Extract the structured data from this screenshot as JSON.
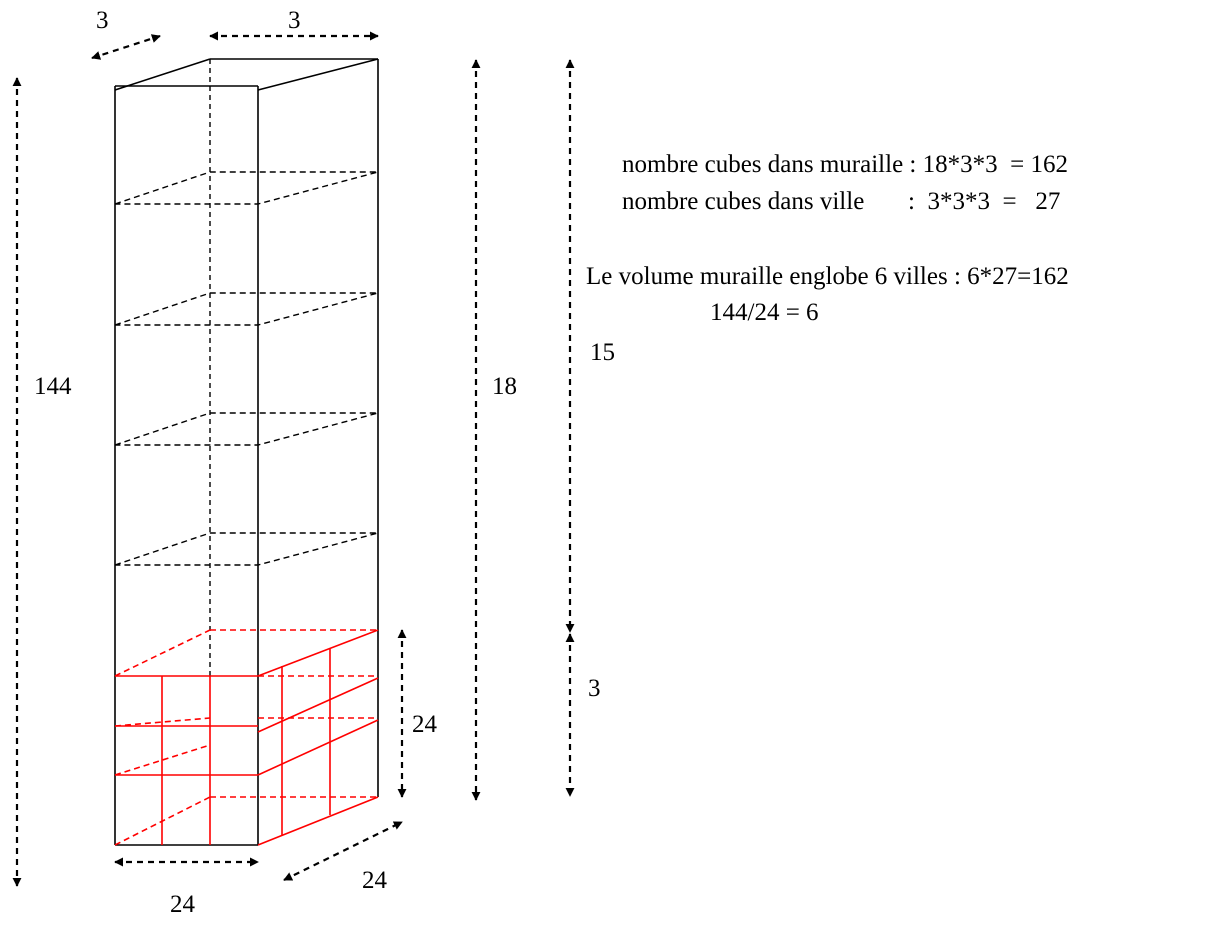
{
  "colors": {
    "ink": "#000000",
    "city": "#ff0000",
    "background": "#ffffff"
  },
  "dimensions": {
    "top_depth": "3",
    "top_width": "3",
    "total_height": "144",
    "wall_height": "18",
    "segment_upper": "15",
    "segment_lower": "3",
    "city_height": "24",
    "base_width": "24",
    "base_depth": "24"
  },
  "notes": {
    "line1": "nombre cubes dans muraille : 18*3*3  = 162",
    "line2": "nombre cubes dans ville       :  3*3*3  =   27",
    "line3": "Le volume muraille englobe 6 villes : 6*27=162",
    "line4": "144/24 = 6"
  }
}
